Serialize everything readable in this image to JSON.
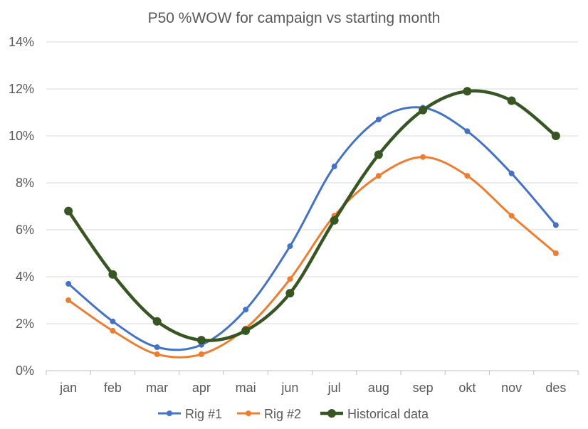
{
  "chart_data": {
    "type": "line",
    "title": "P50 %WOW for campaign vs starting month",
    "xlabel": "",
    "ylabel": "",
    "categories": [
      "jan",
      "feb",
      "mar",
      "apr",
      "mai",
      "jun",
      "jul",
      "aug",
      "sep",
      "okt",
      "nov",
      "des"
    ],
    "ylim": [
      0,
      14
    ],
    "yticks": [
      0,
      2,
      4,
      6,
      8,
      10,
      12,
      14
    ],
    "ytick_labels": [
      "0%",
      "2%",
      "4%",
      "6%",
      "8%",
      "10%",
      "12%",
      "14%"
    ],
    "grid": true,
    "legend_position": "bottom",
    "smooth": true,
    "series": [
      {
        "name": "Rig #1",
        "color": "#4472C4",
        "marker": "circle",
        "values": [
          3.7,
          2.1,
          1.0,
          1.1,
          2.6,
          5.3,
          8.7,
          10.7,
          11.2,
          10.2,
          8.4,
          6.2
        ]
      },
      {
        "name": "Rig #2",
        "color": "#ED7D31",
        "marker": "circle",
        "values": [
          3.0,
          1.7,
          0.7,
          0.7,
          1.8,
          3.9,
          6.6,
          8.3,
          9.1,
          8.3,
          6.6,
          5.0
        ]
      },
      {
        "name": "Historical data",
        "color": "#375623",
        "marker": "circle",
        "values": [
          6.8,
          4.1,
          2.1,
          1.3,
          1.7,
          3.3,
          6.4,
          9.2,
          11.1,
          11.9,
          11.5,
          10.0
        ]
      }
    ]
  }
}
